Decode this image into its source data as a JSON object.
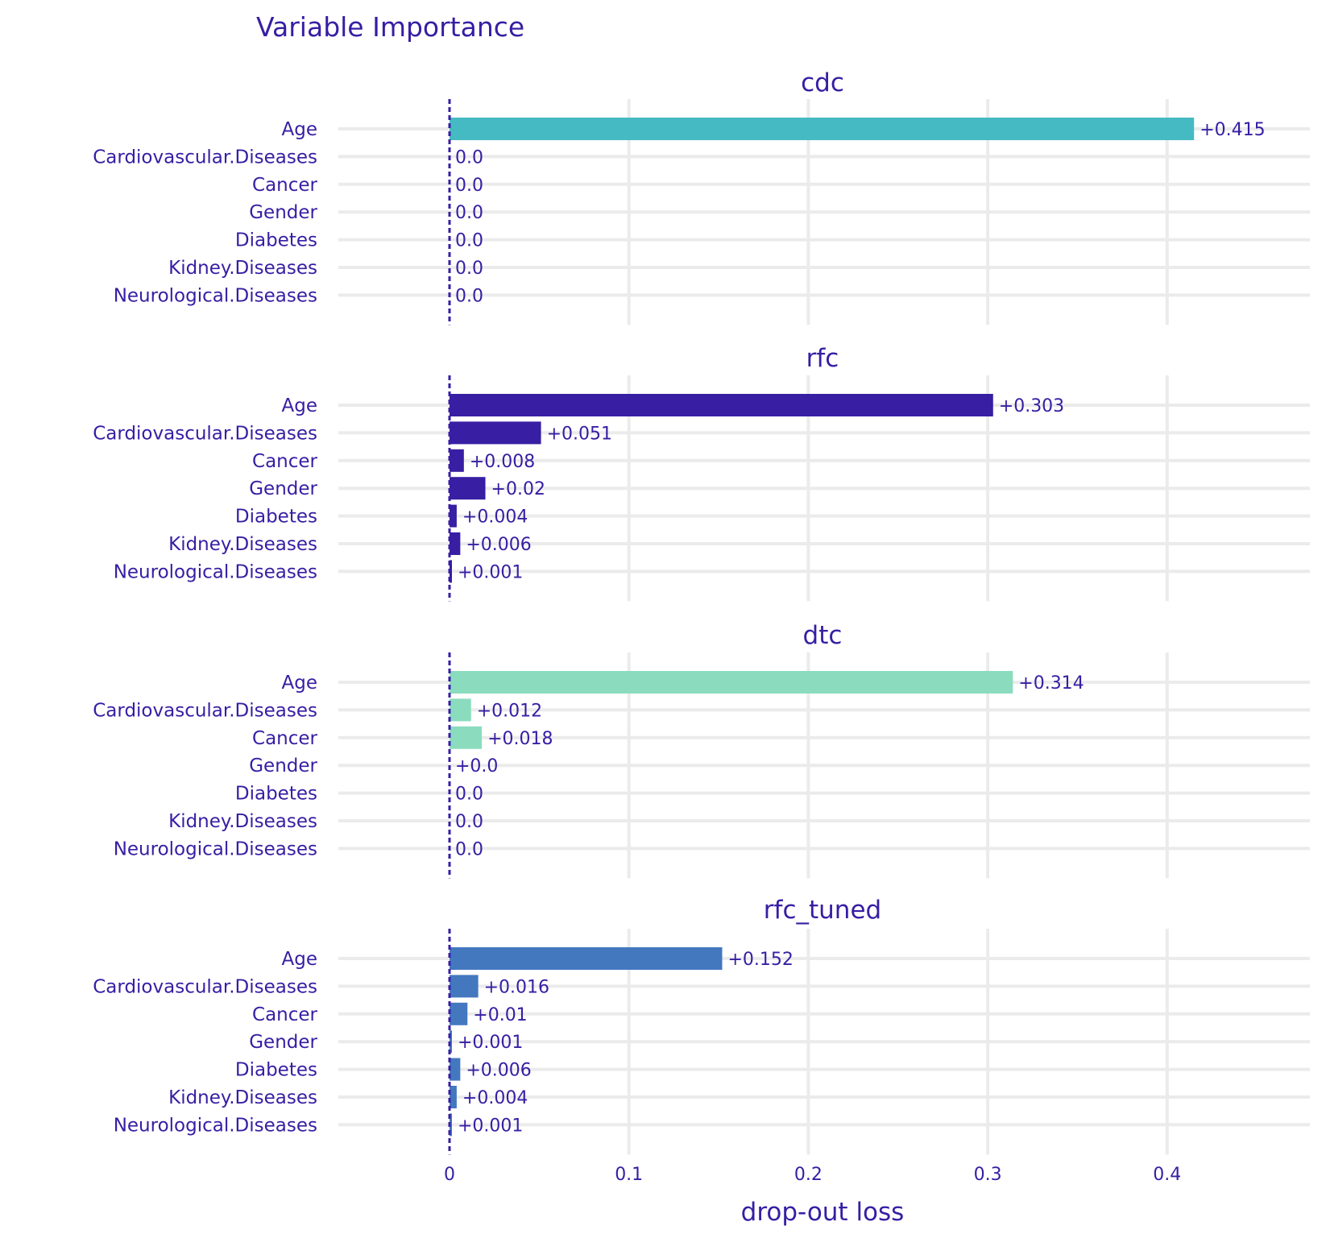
{
  "chart_data": {
    "type": "bar",
    "orientation": "horizontal",
    "title": "Variable Importance",
    "xlabel": "drop-out loss",
    "xlim": [
      -0.063,
      0.478
    ],
    "xticks": [
      0,
      0.1,
      0.2,
      0.3,
      0.4
    ],
    "xtick_labels": [
      "0",
      "0.1",
      "0.2",
      "0.3",
      "0.4"
    ],
    "categories": [
      "Age",
      "Cardiovascular.Diseases",
      "Cancer",
      "Gender",
      "Diabetes",
      "Kidney.Diseases",
      "Neurological.Diseases"
    ],
    "panels": [
      {
        "name": "cdc",
        "color": "#46bac2",
        "values": [
          0.415,
          0.0,
          0.0,
          0.0,
          0.0,
          0.0,
          0.0
        ],
        "labels": [
          "+0.415",
          "0.0",
          "0.0",
          "0.0",
          "0.0",
          "0.0",
          "0.0"
        ]
      },
      {
        "name": "rfc",
        "color": "#371ea3",
        "values": [
          0.303,
          0.051,
          0.008,
          0.02,
          0.004,
          0.006,
          0.001
        ],
        "labels": [
          "+0.303",
          "+0.051",
          "+0.008",
          "+0.02",
          "+0.004",
          "+0.006",
          "+0.001"
        ]
      },
      {
        "name": "dtc",
        "color": "#8bdcbe",
        "values": [
          0.314,
          0.012,
          0.018,
          0.0,
          0.0,
          0.0,
          0.0
        ],
        "labels": [
          "+0.314",
          "+0.012",
          "+0.018",
          "+0.0",
          "0.0",
          "0.0",
          "0.0"
        ]
      },
      {
        "name": "rfc_tuned",
        "color": "#4378bf",
        "values": [
          0.152,
          0.016,
          0.01,
          0.001,
          0.006,
          0.004,
          0.001
        ],
        "labels": [
          "+0.152",
          "+0.016",
          "+0.01",
          "+0.001",
          "+0.006",
          "+0.004",
          "+0.001"
        ]
      }
    ]
  }
}
